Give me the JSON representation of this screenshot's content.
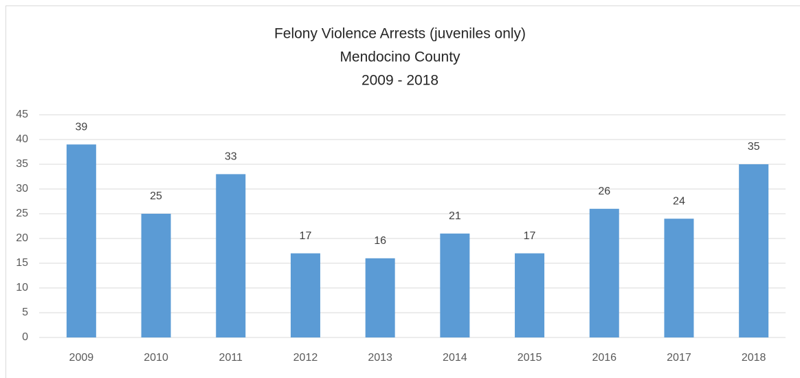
{
  "chart_data": {
    "type": "bar",
    "title": [
      "Felony Violence Arrests (juveniles only)",
      "Mendocino County",
      "2009 - 2018"
    ],
    "categories": [
      "2009",
      "2010",
      "2011",
      "2012",
      "2013",
      "2014",
      "2015",
      "2016",
      "2017",
      "2018"
    ],
    "values": [
      39,
      25,
      33,
      17,
      16,
      21,
      17,
      26,
      24,
      35
    ],
    "color": "#5b9bd5",
    "ylim": [
      0,
      45
    ],
    "yticks": [
      0,
      5,
      10,
      15,
      20,
      25,
      30,
      35,
      40,
      45
    ],
    "grid": true
  }
}
